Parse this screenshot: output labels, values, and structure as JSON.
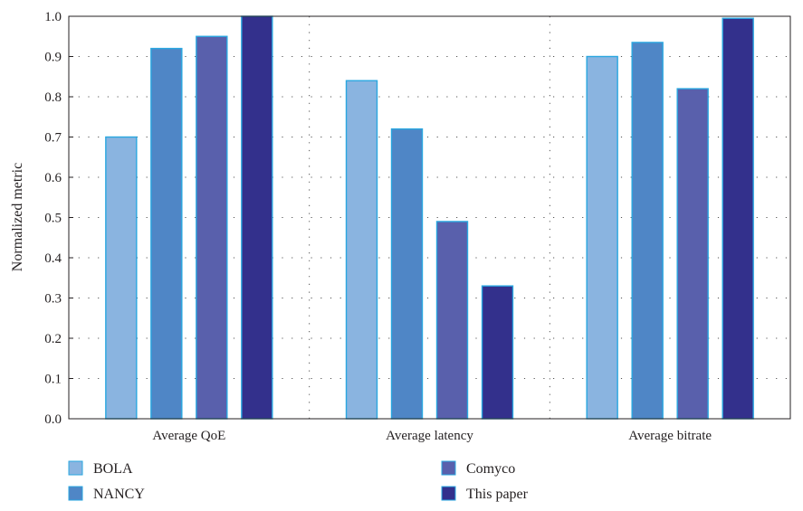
{
  "chart_data": {
    "type": "bar",
    "title": "",
    "xlabel": "",
    "ylabel": "Normalized metric",
    "ylim": [
      0.0,
      1.0
    ],
    "yticks": [
      "0.0",
      "0.1",
      "0.2",
      "0.3",
      "0.4",
      "0.5",
      "0.6",
      "0.7",
      "0.8",
      "0.9",
      "1.0"
    ],
    "grid": "dotted, horizontal and group separators",
    "legend_position": "bottom",
    "categories": [
      "Average QoE",
      "Average latency",
      "Average bitrate"
    ],
    "series": [
      {
        "name": "BOLA",
        "color": "#8ab4e0",
        "values": [
          0.7,
          0.84,
          0.9
        ]
      },
      {
        "name": "NANCY",
        "color": "#4f86c6",
        "values": [
          0.92,
          0.72,
          0.935
        ]
      },
      {
        "name": "Comyco",
        "color": "#5960ac",
        "values": [
          0.95,
          0.49,
          0.82
        ]
      },
      {
        "name": "This paper",
        "color": "#33308c",
        "values": [
          1.0,
          0.33,
          0.995
        ]
      }
    ]
  }
}
